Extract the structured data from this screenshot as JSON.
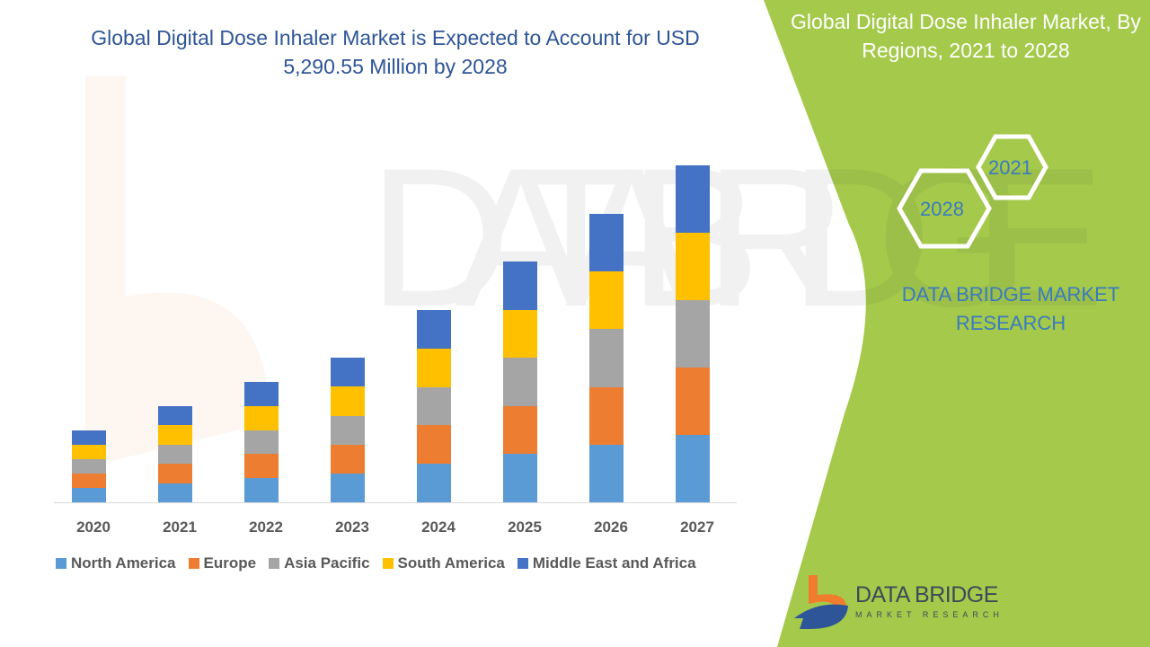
{
  "title": "Global Digital Dose Inhaler Market is Expected to Account for USD 5,290.55 Million by 2028",
  "side_panel": {
    "title": "Global Digital Dose Inhaler Market, By Regions, 2021 to 2028",
    "hex_labels": [
      "2021",
      "2028"
    ],
    "brand_text": "DATA BRIDGE MARKET RESEARCH",
    "logo_text": "DATA BRIDGE",
    "logo_subtext": "MARKET RESEARCH"
  },
  "colors": {
    "panel_green": "#a4c94b",
    "title_blue": "#2e5597"
  },
  "chart_data": {
    "type": "bar",
    "stacked": true,
    "title": "",
    "xlabel": "",
    "ylabel": "",
    "grid": false,
    "legend_placement": "bottom",
    "categories": [
      "2020",
      "2021",
      "2022",
      "2023",
      "2024",
      "2025",
      "2026",
      "2027"
    ],
    "series": [
      {
        "name": "North America",
        "color": "#5b9bd5",
        "values": [
          16,
          21,
          27,
          32,
          43,
          54,
          64,
          75
        ]
      },
      {
        "name": "Europe",
        "color": "#ed7d31",
        "values": [
          16,
          22,
          27,
          32,
          43,
          53,
          64,
          75
        ]
      },
      {
        "name": "Asia Pacific",
        "color": "#a5a5a5",
        "values": [
          16,
          21,
          26,
          32,
          42,
          54,
          65,
          75
        ]
      },
      {
        "name": "South America",
        "color": "#ffc000",
        "values": [
          16,
          22,
          27,
          33,
          43,
          53,
          64,
          75
        ]
      },
      {
        "name": "Middle East and Africa",
        "color": "#4472c4",
        "values": [
          16,
          21,
          27,
          32,
          43,
          54,
          64,
          75
        ]
      }
    ]
  }
}
